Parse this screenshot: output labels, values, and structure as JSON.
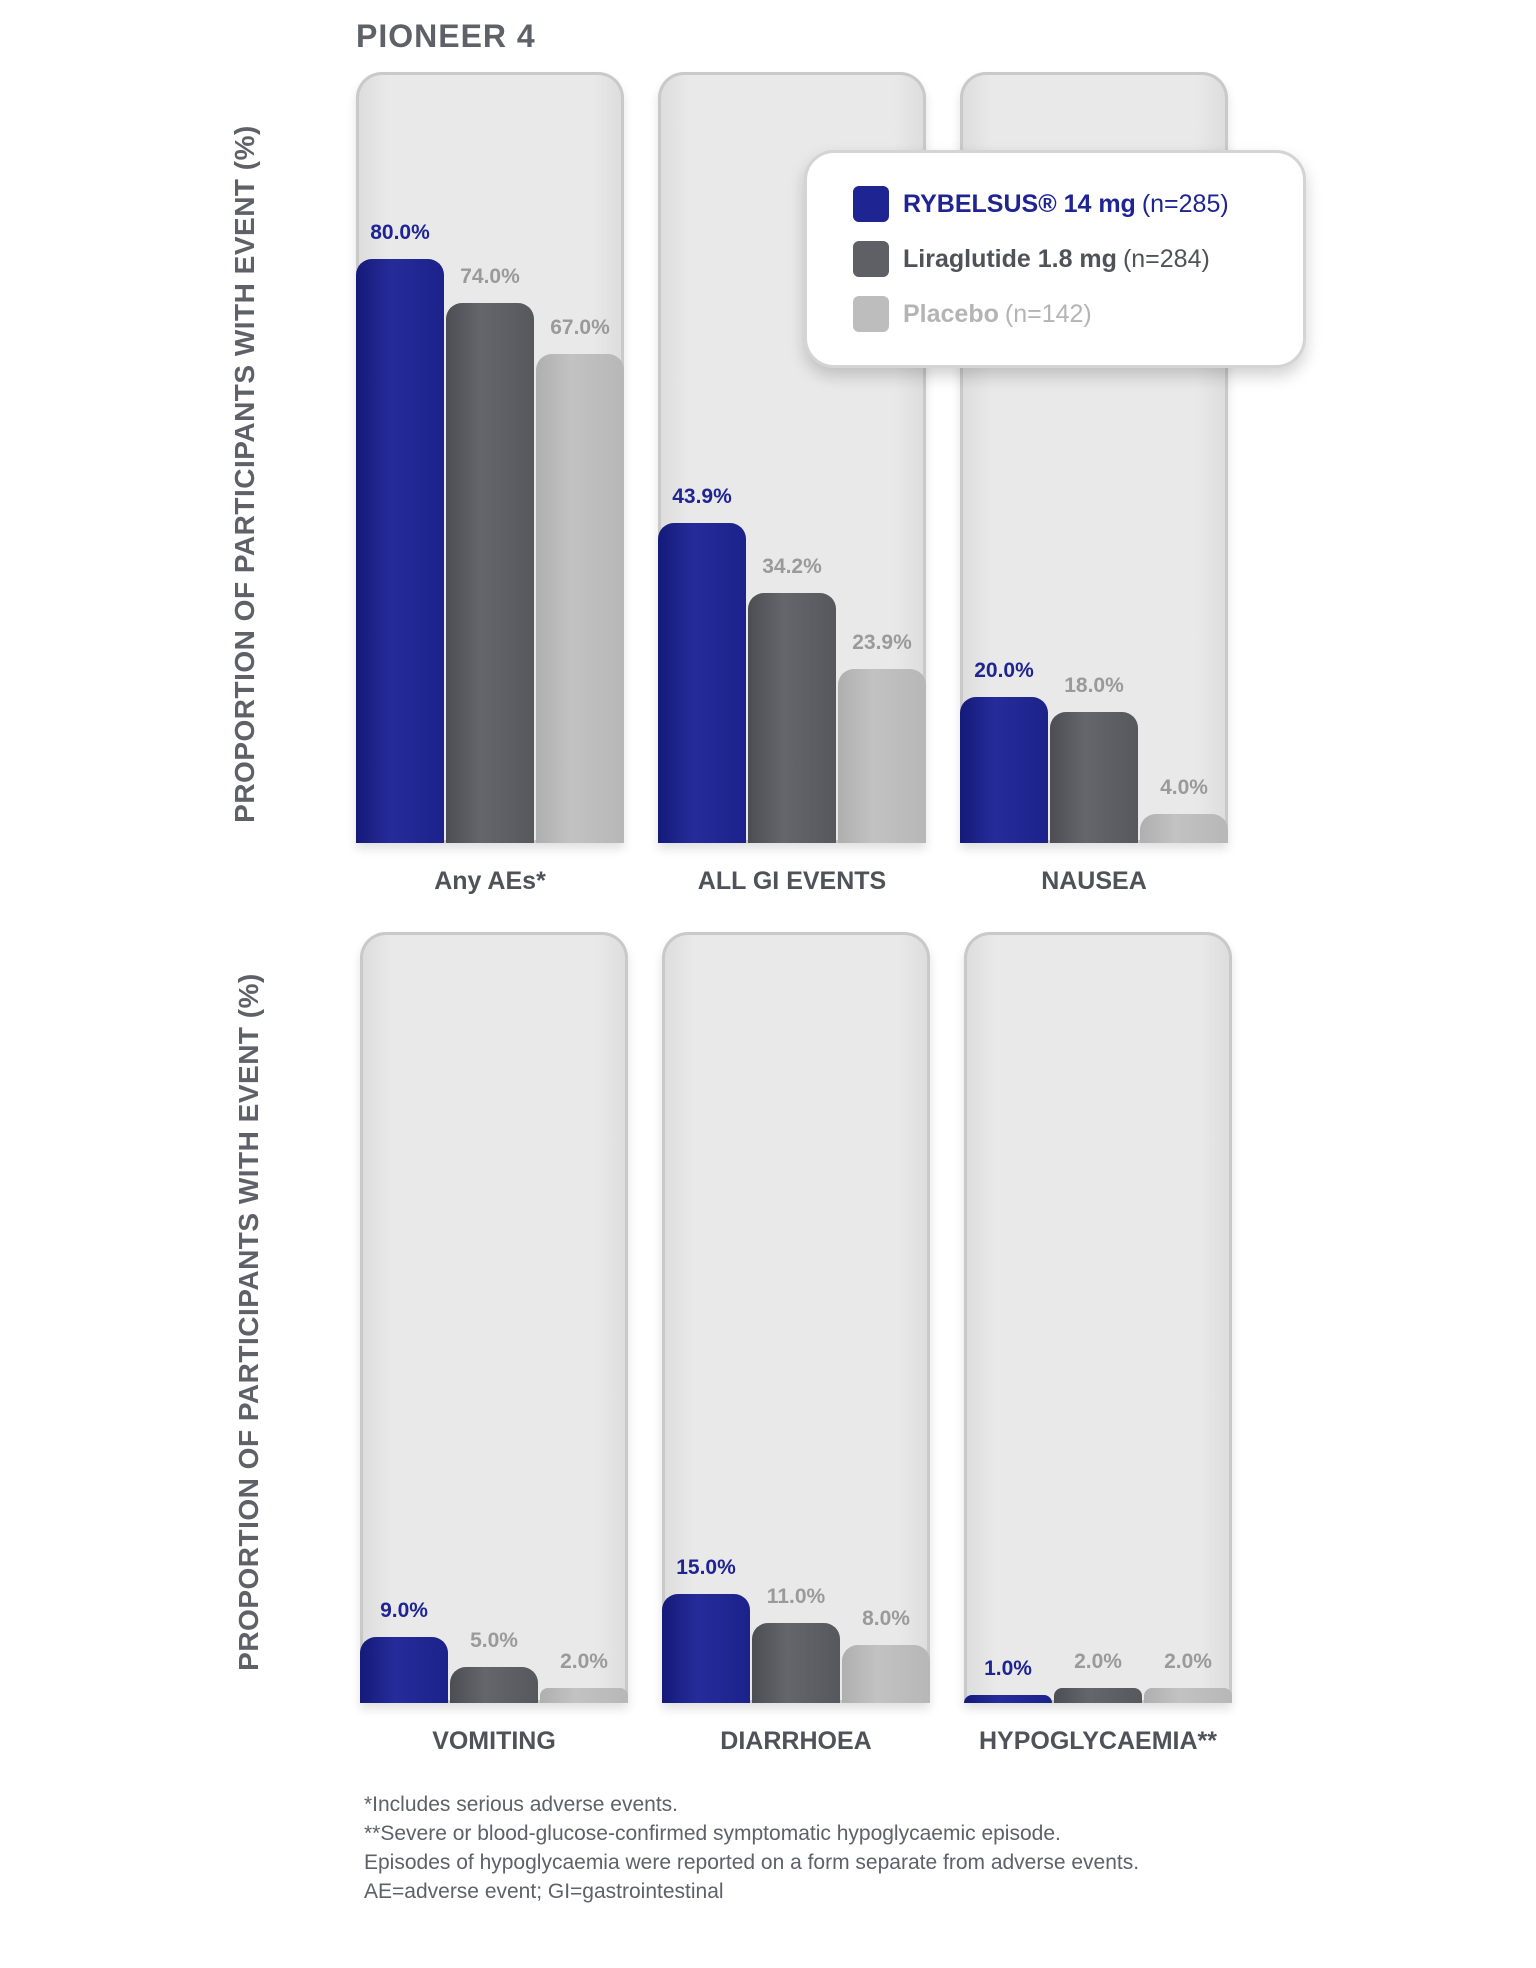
{
  "title": "PIONEER 4",
  "y_axis_label": "PROPORTION OF PARTICIPANTS WITH EVENT (%)",
  "legend": [
    {
      "name": "RYBELSUS® 14 mg",
      "n": "(n=285)",
      "color": "#1f2493",
      "text_color": "#1f2493",
      "n_color": "#1f2493"
    },
    {
      "name": "Liraglutide 1.8 mg",
      "n": "(n=284)",
      "color": "#5e6065",
      "text_color": "#4f5258",
      "n_color": "#4f5258"
    },
    {
      "name": "Placebo",
      "n": "(n=142)",
      "color": "#bdbdbd",
      "text_color": "#b4b4b4",
      "n_color": "#b4b4b4"
    }
  ],
  "chart_data": {
    "type": "bar",
    "title": "PIONEER 4",
    "ylabel": "PROPORTION OF PARTICIPANTS WITH EVENT (%)",
    "ylim": [
      0,
      100
    ],
    "categories": [
      "Any AEs*",
      "ALL GI EVENTS",
      "NAUSEA",
      "VOMITING",
      "DIARRHOEA",
      "HYPOGLYCAEMIA**"
    ],
    "series": [
      {
        "name": "RYBELSUS® 14 mg (n=285)",
        "values": [
          80.0,
          43.9,
          20.0,
          9.0,
          15.0,
          1.0
        ],
        "labels": [
          "80.0%",
          "43.9%",
          "20.0%",
          "9.0%",
          "15.0%",
          "1.0%"
        ]
      },
      {
        "name": "Liraglutide 1.8 mg (n=284)",
        "values": [
          74.0,
          34.2,
          18.0,
          5.0,
          11.0,
          2.0
        ],
        "labels": [
          "74.0%",
          "34.2%",
          "18.0%",
          "5.0%",
          "11.0%",
          "2.0%"
        ]
      },
      {
        "name": "Placebo (n=142)",
        "values": [
          67.0,
          23.9,
          4.0,
          2.0,
          8.0,
          2.0
        ],
        "labels": [
          "67.0%",
          "23.9%",
          "4.0%",
          "2.0%",
          "8.0%",
          "2.0%"
        ]
      }
    ]
  },
  "footnotes": [
    "*Includes serious adverse events.",
    "**Severe or blood-glucose-confirmed symptomatic hypoglycaemic episode.",
    "Episodes of hypoglycaemia were reported on a form separate from adverse events.",
    "AE=adverse event; GI=gastrointestinal"
  ]
}
